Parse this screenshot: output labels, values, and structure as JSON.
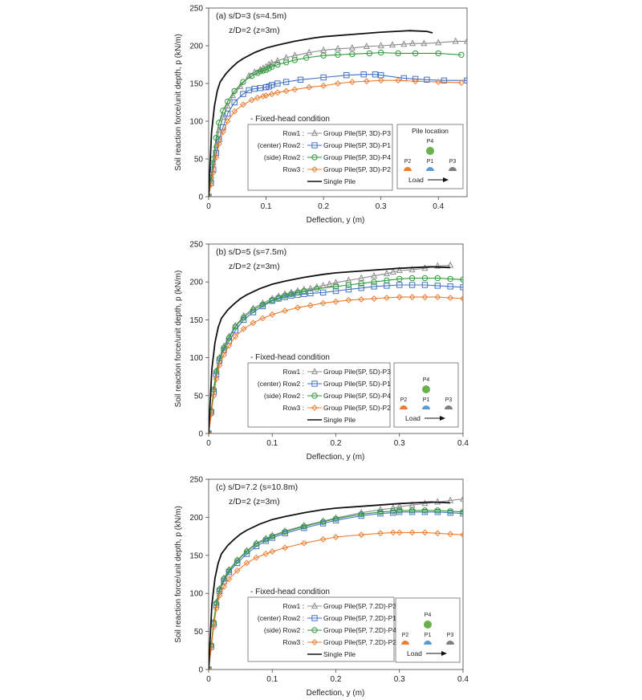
{
  "chart_data": [
    {
      "type": "line",
      "title": "(a) s/D=3 (s=4.5m)",
      "subtitle": "z/D=2 (z=3m)",
      "xlabel": "Deflection, y (m)",
      "ylabel": "Soil reaction force/unit depth, p (kN/m)",
      "xlim": [
        0,
        0.45
      ],
      "ylim": [
        0,
        250
      ],
      "xticks": [
        "0",
        "0.1",
        "0.2",
        "0.3",
        "0.4"
      ],
      "yticks": [
        "0",
        "50",
        "100",
        "150",
        "200",
        "250"
      ],
      "legend_header": "- Fixed-head condition",
      "pile_location_title": "Pile location",
      "series": [
        {
          "row": "Row1 :",
          "name": "Group Pile(5P, 3D)-P3",
          "color": "#8c8c8c",
          "marker": "triangle",
          "x": [
            0,
            0.004,
            0.008,
            0.013,
            0.018,
            0.025,
            0.033,
            0.042,
            0.055,
            0.07,
            0.08,
            0.09,
            0.095,
            0.1,
            0.105,
            0.11,
            0.12,
            0.135,
            0.15,
            0.175,
            0.2,
            0.225,
            0.25,
            0.275,
            0.3,
            0.32,
            0.34,
            0.355,
            0.375,
            0.4,
            0.43,
            0.45
          ],
          "y": [
            0,
            22,
            45,
            68,
            88,
            105,
            120,
            134,
            146,
            160,
            165,
            168,
            170,
            172,
            175,
            177,
            180,
            184,
            187,
            191,
            194,
            196,
            197,
            199,
            200,
            201,
            202,
            203,
            203,
            204,
            206,
            206
          ]
        },
        {
          "row": "(center) Row2 :",
          "name": "Group Pile(5P, 3D)-P1",
          "color": "#4472c4",
          "marker": "square",
          "x": [
            0,
            0.004,
            0.008,
            0.013,
            0.018,
            0.025,
            0.033,
            0.045,
            0.06,
            0.07,
            0.08,
            0.09,
            0.1,
            0.105,
            0.11,
            0.12,
            0.135,
            0.16,
            0.2,
            0.24,
            0.27,
            0.29,
            0.3,
            0.34,
            0.36,
            0.38,
            0.41,
            0.45
          ],
          "y": [
            0,
            18,
            36,
            58,
            76,
            92,
            110,
            125,
            136,
            141,
            143,
            144,
            145,
            146,
            148,
            150,
            152,
            155,
            158,
            161,
            162,
            162,
            161,
            157,
            156,
            155,
            154,
            154
          ]
        },
        {
          "row": "(side) Row2 :",
          "name": "Group Pile(5P, 3D)-P4",
          "color": "#2e9b3a",
          "marker": "circle",
          "x": [
            0,
            0.004,
            0.008,
            0.013,
            0.018,
            0.025,
            0.033,
            0.045,
            0.06,
            0.075,
            0.085,
            0.09,
            0.095,
            0.1,
            0.105,
            0.11,
            0.12,
            0.135,
            0.15,
            0.17,
            0.2,
            0.225,
            0.25,
            0.28,
            0.3,
            0.33,
            0.36,
            0.4,
            0.44
          ],
          "y": [
            0,
            25,
            50,
            78,
            98,
            114,
            126,
            140,
            152,
            160,
            164,
            166,
            167,
            168,
            170,
            172,
            175,
            178,
            181,
            184,
            187,
            188,
            189,
            190,
            191,
            190,
            190,
            190,
            188
          ]
        },
        {
          "row": "Row3 :",
          "name": "Group Pile(5P, 3D)-P2",
          "color": "#ed7d31",
          "marker": "diamond",
          "x": [
            0,
            0.004,
            0.008,
            0.013,
            0.018,
            0.025,
            0.033,
            0.045,
            0.06,
            0.075,
            0.085,
            0.095,
            0.1,
            0.11,
            0.12,
            0.135,
            0.15,
            0.175,
            0.2,
            0.225,
            0.25,
            0.275,
            0.3,
            0.33,
            0.36,
            0.4,
            0.44
          ],
          "y": [
            0,
            16,
            32,
            52,
            70,
            86,
            100,
            113,
            122,
            128,
            131,
            133,
            134,
            136,
            138,
            140,
            142,
            145,
            147,
            150,
            152,
            153,
            154,
            154,
            153,
            152,
            151
          ]
        },
        {
          "row": "",
          "name": "Single Pile",
          "color": "#111111",
          "marker": "none",
          "x": [
            0,
            0.002,
            0.005,
            0.01,
            0.015,
            0.02,
            0.03,
            0.04,
            0.05,
            0.06,
            0.08,
            0.1,
            0.12,
            0.15,
            0.18,
            0.2,
            0.25,
            0.3,
            0.35,
            0.38,
            0.39
          ],
          "y": [
            0,
            35,
            85,
            120,
            140,
            152,
            163,
            171,
            178,
            183,
            191,
            197,
            201,
            206,
            210,
            212,
            215,
            218,
            220,
            219,
            217
          ]
        }
      ]
    },
    {
      "type": "line",
      "title": "(b) s/D=5 (s=7.5m)",
      "subtitle": "z/D=2 (z=3m)",
      "xlabel": "Deflection, y (m)",
      "ylabel": "Soil reaction force/unit depth, p (kN/m)",
      "xlim": [
        0,
        0.4
      ],
      "ylim": [
        0,
        250
      ],
      "xticks": [
        "0",
        "0.1",
        "0.2",
        "0.3",
        "0.4"
      ],
      "yticks": [
        "0",
        "50",
        "100",
        "150",
        "200",
        "250"
      ],
      "legend_header": "- Fixed-head condition",
      "pile_location_title": "",
      "series": [
        {
          "row": "Row1 :",
          "name": "Group Pile(5P, 5D)-P3",
          "color": "#8c8c8c",
          "marker": "triangle",
          "x": [
            0,
            0.004,
            0.008,
            0.012,
            0.017,
            0.024,
            0.032,
            0.042,
            0.055,
            0.07,
            0.085,
            0.1,
            0.11,
            0.12,
            0.13,
            0.14,
            0.15,
            0.16,
            0.17,
            0.18,
            0.19,
            0.2,
            0.22,
            0.24,
            0.26,
            0.28,
            0.29,
            0.3,
            0.32,
            0.34,
            0.36,
            0.38
          ],
          "y": [
            0,
            30,
            58,
            82,
            100,
            115,
            128,
            142,
            155,
            165,
            172,
            178,
            181,
            184,
            186,
            188,
            190,
            191,
            193,
            195,
            197,
            199,
            202,
            205,
            208,
            211,
            213,
            215,
            216,
            218,
            221,
            222
          ]
        },
        {
          "row": "(center) Row2 :",
          "name": "Group Pile(5P, 5D)-P1",
          "color": "#4472c4",
          "marker": "square",
          "x": [
            0,
            0.004,
            0.008,
            0.012,
            0.017,
            0.024,
            0.032,
            0.042,
            0.055,
            0.07,
            0.085,
            0.1,
            0.11,
            0.12,
            0.13,
            0.14,
            0.15,
            0.16,
            0.18,
            0.2,
            0.22,
            0.24,
            0.26,
            0.28,
            0.3,
            0.32,
            0.34,
            0.36,
            0.38,
            0.4
          ],
          "y": [
            0,
            28,
            55,
            78,
            96,
            110,
            122,
            136,
            150,
            160,
            168,
            175,
            178,
            180,
            182,
            183,
            184,
            185,
            186,
            188,
            190,
            192,
            194,
            195,
            196,
            196,
            196,
            195,
            194,
            193
          ]
        },
        {
          "row": "(side) Row2 :",
          "name": "Group Pile(5P, 5D)-P4",
          "color": "#2e9b3a",
          "marker": "circle",
          "x": [
            0,
            0.004,
            0.008,
            0.012,
            0.017,
            0.024,
            0.032,
            0.042,
            0.055,
            0.07,
            0.085,
            0.1,
            0.11,
            0.12,
            0.13,
            0.14,
            0.15,
            0.17,
            0.2,
            0.22,
            0.24,
            0.26,
            0.28,
            0.3,
            0.32,
            0.34,
            0.36,
            0.38,
            0.4
          ],
          "y": [
            0,
            30,
            58,
            82,
            99,
            113,
            126,
            141,
            153,
            163,
            170,
            176,
            179,
            182,
            184,
            186,
            188,
            191,
            194,
            196,
            198,
            200,
            202,
            204,
            205,
            205,
            205,
            204,
            203
          ]
        },
        {
          "row": "Row3 :",
          "name": "Group Pile(5P, 5D)-P2",
          "color": "#ed7d31",
          "marker": "diamond",
          "x": [
            0,
            0.004,
            0.008,
            0.012,
            0.017,
            0.024,
            0.032,
            0.042,
            0.055,
            0.07,
            0.085,
            0.1,
            0.12,
            0.14,
            0.16,
            0.18,
            0.2,
            0.22,
            0.24,
            0.26,
            0.28,
            0.3,
            0.32,
            0.34,
            0.36,
            0.38,
            0.4
          ],
          "y": [
            0,
            25,
            50,
            72,
            90,
            104,
            116,
            128,
            138,
            146,
            152,
            157,
            162,
            166,
            169,
            172,
            174,
            176,
            177,
            178,
            179,
            180,
            180,
            180,
            180,
            179,
            178
          ]
        },
        {
          "row": "",
          "name": "Single Pile",
          "color": "#111111",
          "marker": "none",
          "x": [
            0,
            0.002,
            0.005,
            0.01,
            0.015,
            0.02,
            0.03,
            0.04,
            0.05,
            0.06,
            0.08,
            0.1,
            0.12,
            0.15,
            0.18,
            0.2,
            0.25,
            0.3,
            0.35,
            0.38
          ],
          "y": [
            0,
            35,
            85,
            120,
            140,
            152,
            163,
            171,
            178,
            183,
            191,
            197,
            201,
            206,
            210,
            212,
            215,
            218,
            220,
            219
          ]
        }
      ]
    },
    {
      "type": "line",
      "title": "(c) s/D=7.2 (s=10.8m)",
      "subtitle": "z/D=2 (z=3m)",
      "xlabel": "Deflection, y (m)",
      "ylabel": "Soil reaction force/unit depth, p (kN/m)",
      "xlim": [
        0,
        0.4
      ],
      "ylim": [
        0,
        250
      ],
      "xticks": [
        "0",
        "0.1",
        "0.2",
        "0.3",
        "0.4"
      ],
      "yticks": [
        "0",
        "50",
        "100",
        "150",
        "200",
        "250"
      ],
      "legend_header": "- Fixed-head condition",
      "pile_location_title": "",
      "series": [
        {
          "row": "Row1 :",
          "name": "Group Pile(5P, 7.2D)-P3",
          "color": "#8c8c8c",
          "marker": "triangle",
          "x": [
            0,
            0.004,
            0.008,
            0.012,
            0.017,
            0.024,
            0.032,
            0.045,
            0.06,
            0.075,
            0.09,
            0.1,
            0.12,
            0.15,
            0.18,
            0.2,
            0.24,
            0.27,
            0.29,
            0.3,
            0.32,
            0.34,
            0.36,
            0.38,
            0.4
          ],
          "y": [
            0,
            32,
            62,
            88,
            106,
            120,
            131,
            144,
            156,
            166,
            172,
            176,
            182,
            189,
            195,
            199,
            206,
            210,
            212,
            214,
            216,
            218,
            220,
            222,
            224
          ]
        },
        {
          "row": "(center) Row2 :",
          "name": "Group Pile(5P, 7.2D)-P1",
          "color": "#4472c4",
          "marker": "square",
          "x": [
            0,
            0.004,
            0.008,
            0.012,
            0.017,
            0.024,
            0.032,
            0.045,
            0.06,
            0.075,
            0.09,
            0.1,
            0.12,
            0.15,
            0.18,
            0.2,
            0.24,
            0.27,
            0.29,
            0.3,
            0.32,
            0.34,
            0.36,
            0.38,
            0.4
          ],
          "y": [
            0,
            30,
            60,
            85,
            103,
            116,
            128,
            140,
            152,
            162,
            169,
            173,
            179,
            186,
            192,
            196,
            202,
            205,
            206,
            207,
            207,
            207,
            207,
            206,
            205
          ]
        },
        {
          "row": "(side) Row2 :",
          "name": "Group Pile(5P, 7.2D)-P4",
          "color": "#2e9b3a",
          "marker": "circle",
          "x": [
            0,
            0.004,
            0.008,
            0.012,
            0.017,
            0.024,
            0.032,
            0.045,
            0.06,
            0.075,
            0.09,
            0.1,
            0.12,
            0.15,
            0.18,
            0.2,
            0.24,
            0.27,
            0.29,
            0.3,
            0.32,
            0.34,
            0.36,
            0.38,
            0.4
          ],
          "y": [
            0,
            32,
            62,
            87,
            105,
            119,
            130,
            143,
            155,
            165,
            171,
            175,
            181,
            188,
            194,
            198,
            204,
            207,
            208,
            209,
            209,
            209,
            209,
            208,
            207
          ]
        },
        {
          "row": "Row3 :",
          "name": "Group Pile(5P, 7.2D)-P2",
          "color": "#ed7d31",
          "marker": "diamond",
          "x": [
            0,
            0.004,
            0.008,
            0.012,
            0.017,
            0.024,
            0.032,
            0.045,
            0.06,
            0.075,
            0.09,
            0.1,
            0.12,
            0.15,
            0.18,
            0.2,
            0.24,
            0.27,
            0.29,
            0.3,
            0.32,
            0.34,
            0.36,
            0.38,
            0.4
          ],
          "y": [
            0,
            28,
            56,
            80,
            97,
            109,
            119,
            130,
            140,
            147,
            152,
            155,
            160,
            166,
            171,
            174,
            177,
            179,
            180,
            180,
            180,
            180,
            179,
            178,
            177
          ]
        },
        {
          "row": "",
          "name": "Single Pile",
          "color": "#111111",
          "marker": "none",
          "x": [
            0,
            0.002,
            0.005,
            0.01,
            0.015,
            0.02,
            0.03,
            0.04,
            0.05,
            0.06,
            0.08,
            0.1,
            0.12,
            0.15,
            0.18,
            0.2,
            0.25,
            0.3,
            0.35,
            0.38
          ],
          "y": [
            0,
            35,
            85,
            120,
            140,
            152,
            163,
            171,
            178,
            183,
            191,
            197,
            201,
            206,
            210,
            212,
            215,
            218,
            220,
            219
          ]
        }
      ]
    }
  ],
  "pile_diagram": {
    "labels": [
      "P4",
      "P2",
      "P1",
      "P3"
    ],
    "colors": {
      "P4": "#6ab04c",
      "P2": "#ed7d31",
      "P1": "#5b9bd5",
      "P3": "#7f7f7f"
    },
    "load_label": "Load"
  }
}
